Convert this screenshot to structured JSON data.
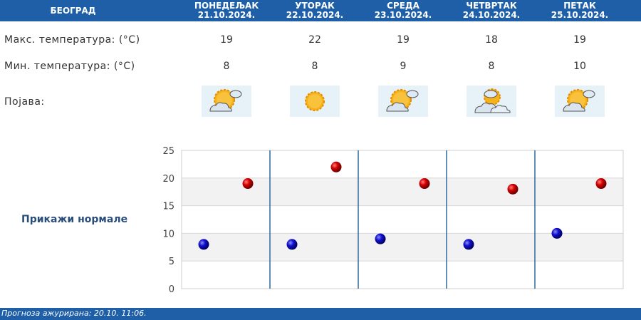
{
  "header": {
    "city": "БЕОГРАД",
    "days": [
      {
        "day": "ПОНЕДЕЉАК",
        "date": "21.10.2024."
      },
      {
        "day": "УТОРАК",
        "date": "22.10.2024."
      },
      {
        "day": "СРЕДА",
        "date": "23.10.2024."
      },
      {
        "day": "ЧЕТВРТАК",
        "date": "24.10.2024."
      },
      {
        "day": "ПЕТАК",
        "date": "25.10.2024."
      }
    ]
  },
  "rows": {
    "max_label": "Макс. температура: (°C)",
    "min_label": "Мин. температура: (°C)",
    "phen_label": "Појава:",
    "max": [
      "19",
      "22",
      "19",
      "18",
      "19"
    ],
    "min": [
      "8",
      "8",
      "9",
      "8",
      "10"
    ],
    "icons": [
      "sun-cloud-icon",
      "sun-icon",
      "sun-cloud-icon",
      "cloud-sun-icon",
      "sun-cloud-icon"
    ]
  },
  "normals_link": "Прикажи нормале",
  "footer": "Прогноза ажурирана:  20.10. 11:06.",
  "chart_data": {
    "type": "scatter",
    "categories": [
      "21.10.2024.",
      "22.10.2024.",
      "23.10.2024.",
      "24.10.2024.",
      "25.10.2024."
    ],
    "series": [
      {
        "color": "#cc0000",
        "values": [
          19,
          22,
          19,
          18,
          19
        ]
      },
      {
        "color": "#0000aa",
        "values": [
          8,
          8,
          9,
          8,
          10
        ]
      }
    ],
    "ylim": [
      0,
      25
    ],
    "yticks": [
      0,
      5,
      10,
      15,
      20,
      25
    ],
    "grid": true
  }
}
